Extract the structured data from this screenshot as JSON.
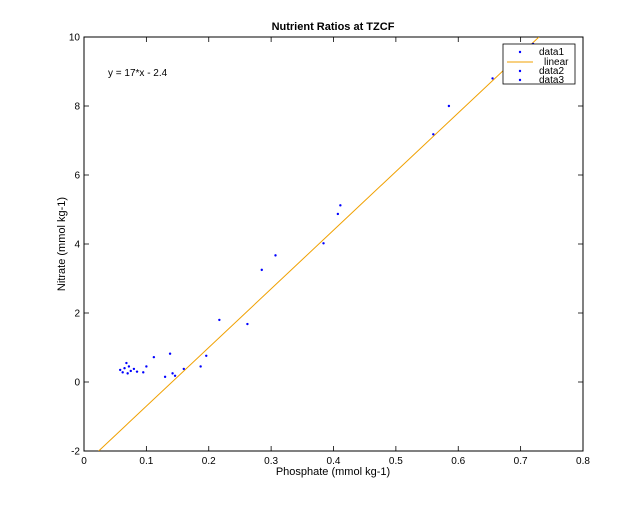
{
  "chart_data": {
    "type": "scatter",
    "title": "Nutrient Ratios at TZCF",
    "xlabel": "Phosphate (mmol kg-1)",
    "ylabel": "Nitrate (mmol kg-1)",
    "xlim": [
      0,
      0.8
    ],
    "ylim": [
      -2,
      10
    ],
    "x_ticks": [
      0,
      0.1,
      0.2,
      0.3,
      0.4,
      0.5,
      0.6,
      0.7,
      0.8
    ],
    "y_ticks": [
      -2,
      0,
      2,
      4,
      6,
      8,
      10
    ],
    "x_tick_labels": [
      "0",
      "0.1",
      "0.2",
      "0.3",
      "0.4",
      "0.5",
      "0.6",
      "0.7",
      "0.8"
    ],
    "y_tick_labels": [
      "-2",
      "0",
      "2",
      "4",
      "6",
      "8",
      "10"
    ],
    "grid": false,
    "legend_position": "top-right",
    "annotation": "y = 17*x - 2.4",
    "series": [
      {
        "name": "data1",
        "kind": "scatter",
        "color": "#0000ff",
        "points": [
          [
            0.058,
            0.35
          ],
          [
            0.062,
            0.28
          ],
          [
            0.065,
            0.4
          ],
          [
            0.068,
            0.55
          ],
          [
            0.07,
            0.25
          ],
          [
            0.072,
            0.45
          ],
          [
            0.075,
            0.32
          ],
          [
            0.08,
            0.38
          ],
          [
            0.085,
            0.3
          ],
          [
            0.095,
            0.28
          ],
          [
            0.1,
            0.45
          ],
          [
            0.112,
            0.72
          ],
          [
            0.13,
            0.15
          ],
          [
            0.138,
            0.82
          ],
          [
            0.142,
            0.25
          ],
          [
            0.146,
            0.18
          ],
          [
            0.16,
            0.38
          ],
          [
            0.187,
            0.45
          ],
          [
            0.196,
            0.76
          ],
          [
            0.217,
            1.8
          ],
          [
            0.262,
            1.68
          ],
          [
            0.285,
            3.25
          ],
          [
            0.307,
            3.67
          ],
          [
            0.384,
            4.02
          ],
          [
            0.407,
            4.87
          ],
          [
            0.411,
            5.12
          ],
          [
            0.56,
            7.18
          ],
          [
            0.585,
            8.0
          ],
          [
            0.655,
            8.8
          ],
          [
            0.72,
            9.8
          ]
        ]
      },
      {
        "name": "linear",
        "kind": "line",
        "color": "#f0a000",
        "slope": 17,
        "intercept": -2.4,
        "x_range": [
          0.0235,
          0.7294
        ]
      },
      {
        "name": "data2",
        "kind": "scatter",
        "color": "#0000ff",
        "points": []
      },
      {
        "name": "data3",
        "kind": "scatter",
        "color": "#0000ff",
        "points": []
      }
    ]
  }
}
